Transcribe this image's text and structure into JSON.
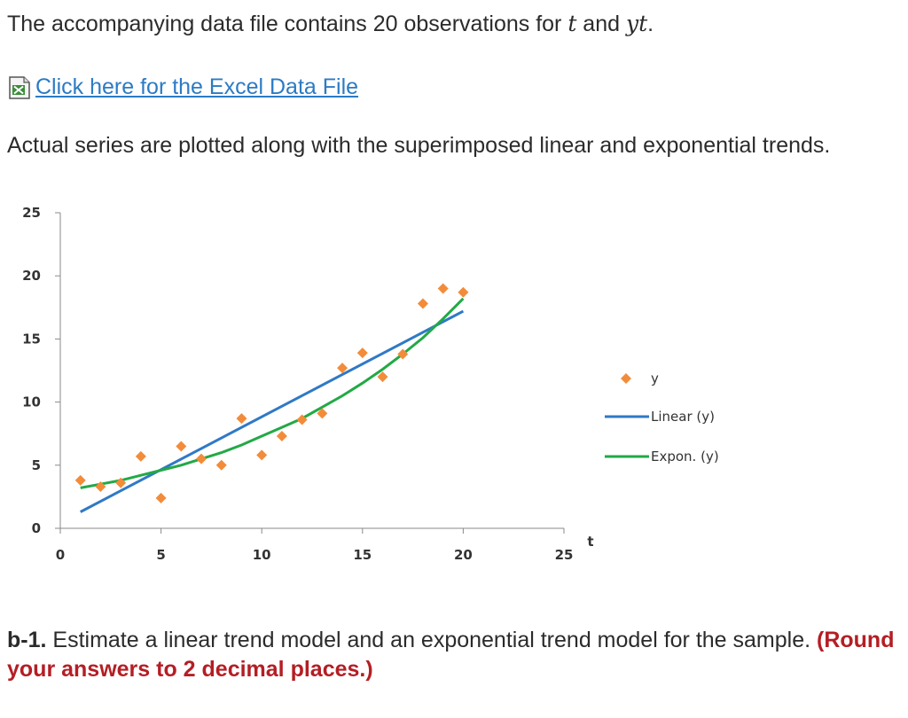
{
  "intro": {
    "text_before": "The accompanying data file contains 20 observations for ",
    "var_t": "t",
    "text_and": " and ",
    "var_y": "yt",
    "text_after": "."
  },
  "data_link": {
    "label": "Click here for the Excel Data File",
    "icon": "excel-file-icon"
  },
  "description": "Actual series are plotted along with the superimposed linear and exponential trends.",
  "chart_data": {
    "type": "scatter",
    "title": "",
    "xlabel": "t",
    "ylabel": "",
    "xlim": [
      0,
      25
    ],
    "ylim": [
      0,
      25
    ],
    "x_ticks": [
      "0",
      "5",
      "10",
      "15",
      "20",
      "25"
    ],
    "y_ticks": [
      "0",
      "5",
      "10",
      "15",
      "20",
      "25"
    ],
    "grid": false,
    "legend_position": "right",
    "series": [
      {
        "name": "y",
        "kind": "points",
        "color": "#f28c3a",
        "x": [
          1,
          2,
          3,
          4,
          5,
          6,
          7,
          8,
          9,
          10,
          11,
          12,
          13,
          14,
          15,
          16,
          17,
          18,
          19,
          20
        ],
        "y": [
          3.8,
          3.3,
          3.6,
          5.7,
          2.4,
          6.5,
          5.5,
          5.0,
          8.7,
          5.8,
          7.3,
          8.6,
          9.1,
          12.7,
          13.9,
          12.0,
          13.8,
          17.8,
          19.0,
          18.7
        ]
      },
      {
        "name": "Linear (y)",
        "kind": "line",
        "color": "#2f79c6",
        "x": [
          1,
          20
        ],
        "y": [
          1.3,
          17.2
        ]
      },
      {
        "name": "Expon. (y)",
        "kind": "line",
        "color": "#22a946",
        "x": [
          1,
          2,
          3,
          4,
          5,
          6,
          7,
          8,
          9,
          10,
          11,
          12,
          13,
          14,
          15,
          16,
          17,
          18,
          19,
          20
        ],
        "y": [
          3.2,
          3.5,
          3.8,
          4.2,
          4.6,
          5.0,
          5.5,
          6.0,
          6.6,
          7.3,
          8.0,
          8.7,
          9.6,
          10.5,
          11.5,
          12.6,
          13.8,
          15.1,
          16.6,
          18.2
        ]
      }
    ]
  },
  "question": {
    "number": "b-1.",
    "text": " Estimate a linear trend model and an exponential trend model for the sample. ",
    "note": "(Round your answers to 2 decimal places.)"
  }
}
